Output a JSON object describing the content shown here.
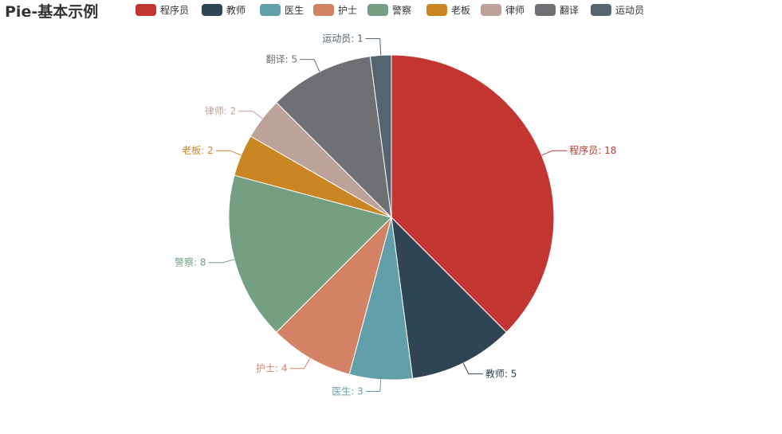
{
  "chart_data": {
    "type": "pie",
    "title": "Pie-基本示例",
    "legend_placement": "top",
    "categories": [
      "程序员",
      "教师",
      "医生",
      "护士",
      "警察",
      "老板",
      "律师",
      "翻译",
      "运动员"
    ],
    "values": [
      18,
      5,
      3,
      4,
      8,
      2,
      2,
      5,
      1
    ],
    "colors": [
      "#c23531",
      "#2f4554",
      "#61a0a8",
      "#d48265",
      "#749f83",
      "#ca8622",
      "#bda29a",
      "#6e7074",
      "#546570"
    ],
    "data_labels": [
      "程序员: 18",
      "教师: 5",
      "医生: 3",
      "护士: 4",
      "警察: 8",
      "老板: 2",
      "律师: 2",
      "翻译: 5",
      "运动员: 1"
    ]
  }
}
